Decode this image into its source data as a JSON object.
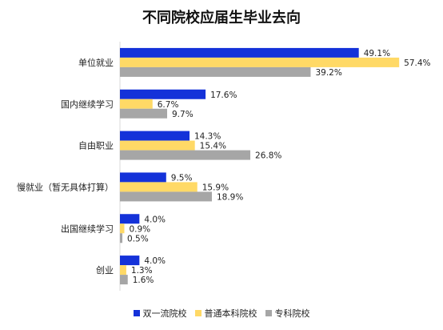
{
  "chart_data": {
    "type": "bar",
    "orientation": "horizontal",
    "title": "不同院校应届生毕业去向",
    "categories": [
      "单位就业",
      "国内继续学习",
      "自由职业",
      "慢就业（暂无具体打算）",
      "出国继续学习",
      "创业"
    ],
    "series": [
      {
        "name": "双一流院校",
        "color": "#1432d9",
        "values": [
          49.1,
          17.6,
          14.3,
          9.5,
          4.0,
          4.0
        ],
        "labels": [
          "49.1%",
          "17.6%",
          "14.3%",
          "9.5%",
          "4.0%",
          "4.0%"
        ]
      },
      {
        "name": "普通本科院校",
        "color": "#ffd966",
        "values": [
          57.4,
          6.7,
          15.4,
          15.9,
          0.9,
          1.3
        ],
        "labels": [
          "57.4%",
          "6.7%",
          "15.4%",
          "15.9%",
          "0.9%",
          "1.3%"
        ]
      },
      {
        "name": "专科院校",
        "color": "#a6a6a6",
        "values": [
          39.2,
          9.7,
          26.8,
          18.9,
          0.5,
          1.6
        ],
        "labels": [
          "39.2%",
          "9.7%",
          "26.8%",
          "18.9%",
          "0.5%",
          "1.6%"
        ]
      }
    ],
    "xlim": [
      0,
      60
    ],
    "grid": false,
    "legend": "bottom"
  }
}
